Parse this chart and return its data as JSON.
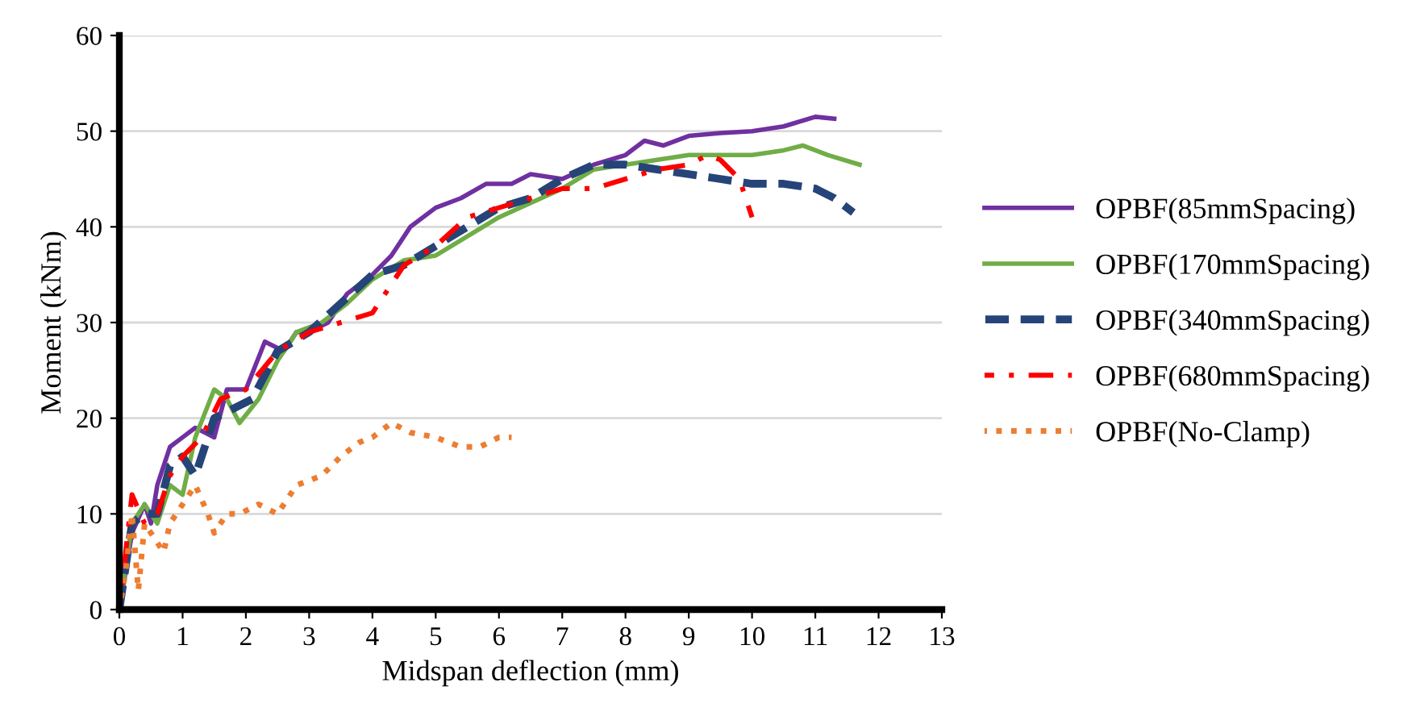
{
  "chart_data": {
    "type": "line",
    "xlabel": "Midspan deflection (mm)",
    "ylabel": "Moment (kNm)",
    "xlim": [
      0,
      13
    ],
    "xticks": [
      0,
      1,
      2,
      3,
      4,
      5,
      6,
      7,
      8,
      9,
      10,
      11,
      12,
      13
    ],
    "ylim": [
      0,
      60
    ],
    "yticks": [
      0,
      10,
      20,
      30,
      40,
      50,
      60
    ],
    "grid": "y",
    "legend": "right",
    "marker": "none",
    "series": [
      {
        "name": "OPBF(85mmSpacing)",
        "color": "#7030a0",
        "line_style": "solid",
        "x": [
          0,
          0.2,
          0.4,
          0.5,
          0.6,
          0.8,
          1.0,
          1.2,
          1.5,
          1.7,
          2.0,
          2.3,
          2.6,
          2.8,
          3.0,
          3.3,
          3.6,
          4.0,
          4.3,
          4.6,
          5.0,
          5.4,
          5.8,
          6.2,
          6.5,
          7.0,
          7.5,
          8.0,
          8.3,
          8.6,
          9.0,
          9.5,
          10,
          10.5,
          11,
          11.3
        ],
        "values": [
          0,
          8,
          11,
          9,
          13,
          17,
          18,
          19,
          18,
          23,
          23,
          28,
          27,
          29,
          29,
          30,
          33,
          35,
          37,
          40,
          42,
          43,
          44.5,
          44.5,
          45.5,
          45,
          46.5,
          47.5,
          49,
          48.5,
          49.5,
          49.8,
          50,
          50.5,
          51.5,
          51.3
        ]
      },
      {
        "name": "OPBF(170mmSpacing)",
        "color": "#70ad47",
        "line_style": "solid",
        "x": [
          0,
          0.2,
          0.4,
          0.6,
          0.8,
          1.0,
          1.2,
          1.5,
          1.7,
          1.9,
          2.2,
          2.5,
          2.8,
          3.2,
          3.6,
          4.0,
          4.5,
          5.0,
          5.5,
          6.0,
          6.5,
          7.0,
          7.5,
          8.0,
          8.5,
          9.0,
          9.5,
          10,
          10.5,
          10.8,
          11.2,
          11.7
        ],
        "values": [
          0,
          9,
          11,
          9,
          13,
          12,
          18,
          23,
          22,
          19.5,
          22,
          26,
          29,
          30,
          32,
          34.5,
          36.5,
          37,
          39,
          41,
          42.5,
          44,
          46,
          46.5,
          47,
          47.5,
          47.5,
          47.5,
          48,
          48.5,
          47.5,
          46.5
        ]
      },
      {
        "name": "OPBF(340mmSpacing)",
        "color": "#264478",
        "line_style": "dashed",
        "x": [
          0,
          0.2,
          0.4,
          0.6,
          0.8,
          1.0,
          1.2,
          1.5,
          1.8,
          2.1,
          2.5,
          3.0,
          3.5,
          4.0,
          4.5,
          5.0,
          5.5,
          6.0,
          6.5,
          7.0,
          7.5,
          8.0,
          8.5,
          9.0,
          9.5,
          10,
          10.5,
          11,
          11.3,
          11.6
        ],
        "values": [
          0,
          9,
          10,
          10,
          15,
          16,
          14,
          20,
          21,
          22,
          27,
          29,
          32,
          35,
          36,
          38,
          40,
          42,
          43,
          45,
          46.5,
          46.5,
          46,
          45.5,
          45,
          44.5,
          44.5,
          44,
          43,
          41.5
        ]
      },
      {
        "name": "OPBF(680mmSpacing)",
        "color": "#ff0000",
        "line_style": "dashdot",
        "x": [
          0,
          0.2,
          0.4,
          0.6,
          0.8,
          1.0,
          1.3,
          1.6,
          2.0,
          2.5,
          3.0,
          3.5,
          4.0,
          4.5,
          5.0,
          5.5,
          6.0,
          6.5,
          7.0,
          7.5,
          8.0,
          8.5,
          9.0,
          9.3,
          9.5,
          9.8,
          10.0
        ],
        "values": [
          0,
          12,
          9,
          10,
          14,
          16,
          18,
          22,
          23,
          27,
          29,
          30,
          31,
          36,
          38,
          41,
          42,
          43,
          44,
          44,
          45,
          46,
          46.5,
          47.5,
          47,
          45,
          41
        ]
      },
      {
        "name": "OPBF(No-Clamp)",
        "color": "#ed7d31",
        "line_style": "dotted",
        "x": [
          0,
          0.1,
          0.2,
          0.3,
          0.4,
          0.5,
          0.7,
          0.8,
          1.0,
          1.2,
          1.4,
          1.5,
          1.7,
          1.9,
          2.2,
          2.5,
          2.8,
          3.2,
          3.5,
          3.8,
          4.0,
          4.3,
          4.6,
          5.0,
          5.4,
          5.7,
          6.0,
          6.2
        ],
        "values": [
          0,
          4,
          10,
          2,
          9,
          8,
          6,
          9,
          11,
          13,
          10,
          8,
          10,
          10,
          11,
          10,
          13,
          14,
          16,
          17.5,
          18,
          19.5,
          18.5,
          18,
          17,
          17,
          18,
          18
        ]
      }
    ]
  }
}
